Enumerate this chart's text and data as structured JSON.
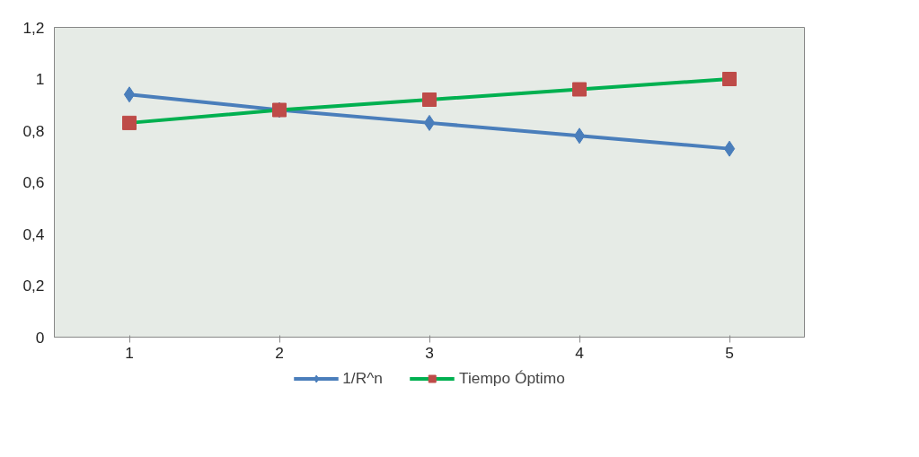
{
  "chart_data": {
    "type": "line",
    "categories": [
      "1",
      "2",
      "3",
      "4",
      "5"
    ],
    "series": [
      {
        "name": "1/R^n",
        "color": "#4a7ebb",
        "marker": "diamond",
        "values": [
          0.94,
          0.88,
          0.83,
          0.78,
          0.73
        ]
      },
      {
        "name": "Tiempo Óptimo",
        "color": "#00b050",
        "colors": [
          "#be4b48",
          "#be4b48",
          "#be4b48",
          "#be4b48",
          "#be4b48"
        ],
        "marker": "square",
        "values": [
          0.83,
          0.88,
          0.92,
          0.96,
          1.0
        ]
      }
    ],
    "ylim": [
      0,
      1.2
    ],
    "yticks": [
      0,
      {
        "value": 0.2,
        "label": "0,2"
      },
      {
        "value": 0.4,
        "label": "0,4"
      },
      {
        "value": 0.6,
        "label": "0,6"
      },
      {
        "value": 0.8,
        "label": "0,8"
      },
      1,
      {
        "value": 1.2,
        "label": "1,2"
      }
    ],
    "grid": false,
    "legend": "bottom",
    "line_style": "solid"
  }
}
